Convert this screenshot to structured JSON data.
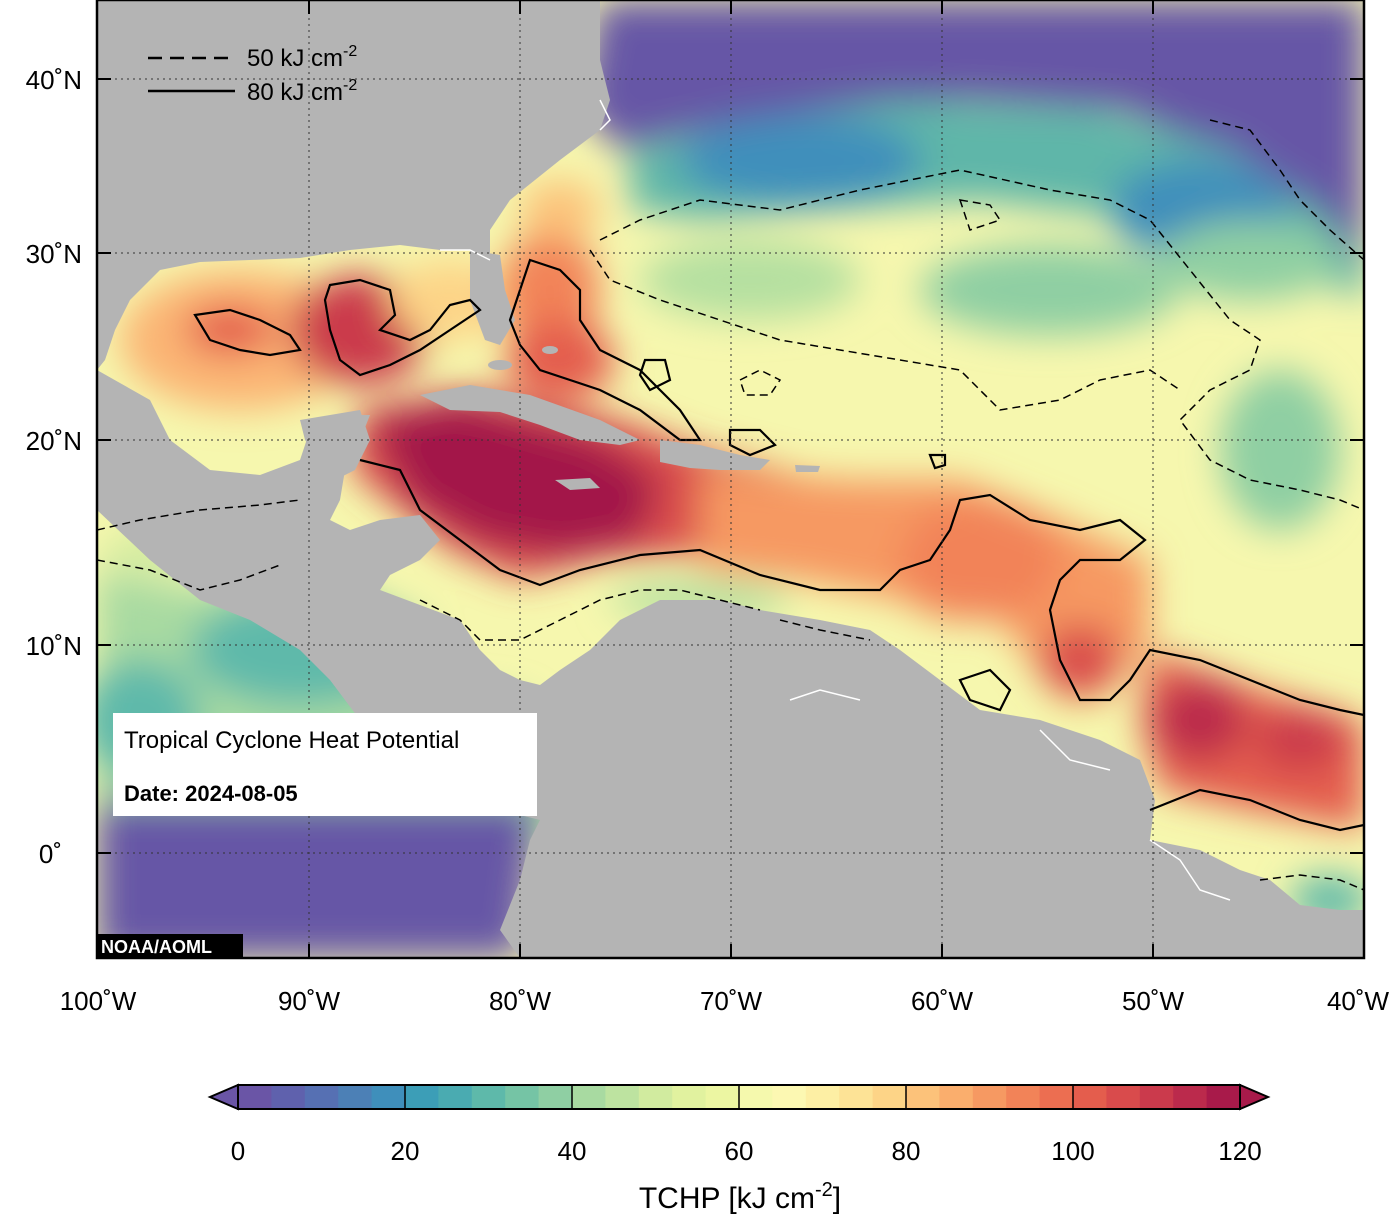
{
  "map": {
    "title": "Tropical Cyclone Heat Potential",
    "date_text": "Date: 2024-08-05",
    "credit": "NOAA/AOML",
    "extent": {
      "lon_min": -100,
      "lon_max": -40,
      "lat_min": -5,
      "lat_max": 45
    },
    "lat_labels": [
      "40˚N",
      "30˚N",
      "20˚N",
      "10˚N",
      "0˚"
    ],
    "lon_labels": [
      "100˚W",
      "90˚W",
      "80˚W",
      "70˚W",
      "60˚W",
      "50˚W",
      "40˚W"
    ],
    "legend": {
      "dashed_label": "50 kJ cm",
      "solid_label": "80 kJ cm",
      "exponent": "-2"
    },
    "colors": {
      "land": "#b4b4b4",
      "deep_ocean": "#6656a6",
      "max": "#a3144a"
    }
  },
  "colorbar": {
    "title": "TCHP [kJ cm",
    "title_exponent": "-2",
    "title_close": "]",
    "ticks": [
      "0",
      "20",
      "40",
      "60",
      "80",
      "100",
      "120"
    ],
    "colors": [
      "#6a55a6",
      "#5f61ad",
      "#5670b3",
      "#4c80b6",
      "#3f8fbb",
      "#3c9eb7",
      "#4aabb1",
      "#5eb9aa",
      "#75c4a5",
      "#8fcfa3",
      "#a8daa1",
      "#bde3a0",
      "#d1eb9f",
      "#e1f29f",
      "#ecf6a2",
      "#f5f9ad",
      "#fcf8b2",
      "#fdefa4",
      "#fde396",
      "#fdd487",
      "#fcc27a",
      "#faae6d",
      "#f69962",
      "#f28358",
      "#ec6e51",
      "#e45d4d",
      "#d94b4c",
      "#cb3a4c",
      "#bb2a4c",
      "#a81a4a"
    ]
  }
}
